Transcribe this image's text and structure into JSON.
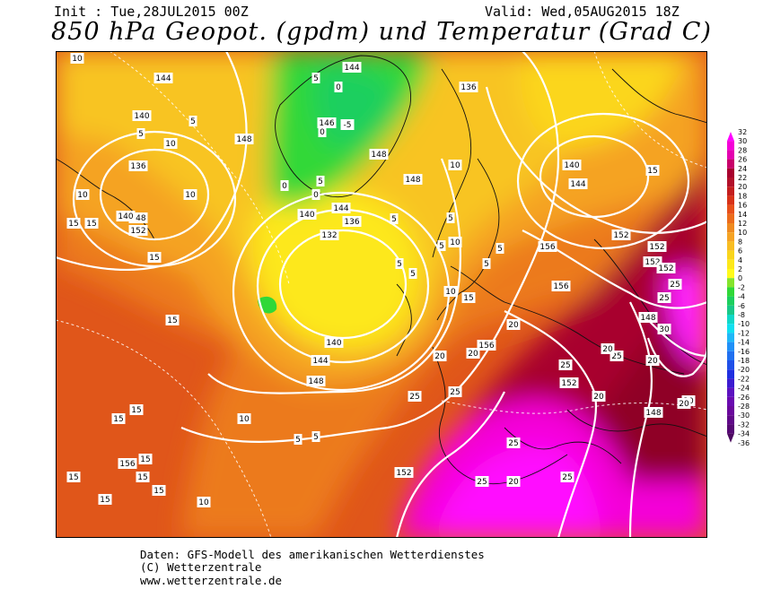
{
  "header": {
    "init": "Init : Tue,28JUL2015 00Z",
    "valid": "Valid: Wed,05AUG2015 18Z",
    "title": "850 hPa Geopot. (gpdm) und Temperatur (Grad C)"
  },
  "footer": {
    "line1": "Daten: GFS-Modell des amerikanischen Wetterdienstes",
    "line2": "(C) Wetterzentrale",
    "line3": "www.wetterzentrale.de"
  },
  "legend": {
    "unit": "Grad C",
    "levels": [
      32,
      30,
      28,
      26,
      24,
      22,
      20,
      18,
      16,
      14,
      12,
      10,
      8,
      6,
      4,
      2,
      0,
      -2,
      -4,
      -6,
      -8,
      -10,
      -12,
      -14,
      -16,
      -18,
      -20,
      -22,
      -24,
      -26,
      -28,
      -30,
      -32,
      -34,
      -36
    ],
    "colors": [
      "#ff00ff",
      "#f400d8",
      "#e400b0",
      "#c8006a",
      "#a8002e",
      "#b2102a",
      "#c41e1e",
      "#d83218",
      "#e8501a",
      "#ec6c1c",
      "#ef8a20",
      "#f5a324",
      "#f8bd22",
      "#f9d51c",
      "#fde81a",
      "#fffa1a",
      "#84e42c",
      "#30d838",
      "#1ccf5e",
      "#18c888",
      "#10d8c8",
      "#10e0f0",
      "#20b8f8",
      "#2090f8",
      "#2070f0",
      "#2050e8",
      "#2030e0",
      "#3c1cd0",
      "#5c12c0",
      "#6a0ab0",
      "#6a089c",
      "#600888",
      "#560874",
      "#4c0860"
    ]
  },
  "map": {
    "geopotential_labels": [
      "144",
      "140",
      "136",
      "148",
      "146",
      "144",
      "140",
      "136",
      "132",
      "140",
      "144",
      "148",
      "136",
      "140",
      "148",
      "144",
      "148",
      "156",
      "152",
      "156",
      "152",
      "148",
      "148",
      "152",
      "156",
      "152",
      "148",
      "152",
      "152",
      "156",
      "152",
      "140",
      "144"
    ],
    "temperature_labels": [
      "10",
      "5",
      "10",
      "5",
      "10",
      "10",
      "15",
      "15",
      "15",
      "5",
      "0",
      "-5",
      "0",
      "5",
      "0",
      "0",
      "5",
      "5",
      "5",
      "5",
      "10",
      "10",
      "15",
      "5",
      "5",
      "5",
      "10",
      "15",
      "20",
      "20",
      "20",
      "25",
      "25",
      "25",
      "25",
      "25",
      "30",
      "20",
      "25",
      "20",
      "25",
      "20",
      "20",
      "20",
      "20",
      "25",
      "15",
      "15",
      "15",
      "15",
      "15",
      "15",
      "15",
      "15",
      "10",
      "5",
      "10",
      "5",
      "25"
    ]
  }
}
